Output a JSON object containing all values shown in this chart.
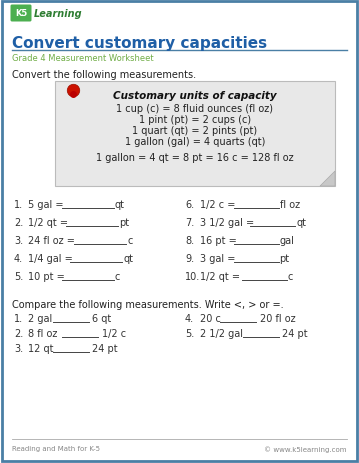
{
  "title": "Convert customary capacities",
  "subtitle": "Grade 4 Measurement Worksheet",
  "bg_color": "#ffffff",
  "border_color": "#4a7fa5",
  "title_color": "#1f5fa6",
  "subtitle_color": "#70ad47",
  "intro_text": "Convert the following measurements.",
  "note_title": "Customary units of capacity",
  "note_lines": [
    "1 cup (c) = 8 fluid ounces (fl oz)",
    "1 pint (pt) = 2 cups (c)",
    "1 quart (qt) = 2 pints (pt)",
    "1 gallon (gal) = 4 quarts (qt)",
    "",
    "1 gallon = 4 qt = 8 pt = 16 c = 128 fl oz"
  ],
  "convert_q_left_num": [
    "1.",
    "2.",
    "3.",
    "4.",
    "5."
  ],
  "convert_q_left_text": [
    "5 gal = ",
    "1/2 qt = ",
    "24 fl oz = ",
    "1/4 gal = ",
    "10 pt = "
  ],
  "convert_q_left_unit": [
    "qt",
    "pt",
    "c",
    "qt",
    "c"
  ],
  "convert_q_right_num": [
    "6.",
    "7.",
    "8.",
    "9.",
    "10."
  ],
  "convert_q_right_text": [
    "1/2 c = ",
    "3 1/2 gal = ",
    "16 pt = ",
    "3 gal = ",
    "1/2 qt =  "
  ],
  "convert_q_right_unit": [
    "fl oz",
    "qt",
    "gal",
    "pt",
    "c"
  ],
  "compare_intro": "Compare the following measurements. Write <, > or =.",
  "compare_left_num": [
    "1.",
    "2.",
    "3."
  ],
  "compare_left_a": [
    "2 gal",
    "8 fl oz",
    "12 qt"
  ],
  "compare_left_b": [
    "6 qt",
    "1/2 c",
    "24 pt"
  ],
  "compare_right_num": [
    "4.",
    "5."
  ],
  "compare_right_a": [
    "20 c",
    "2 1/2 gal"
  ],
  "compare_right_b": [
    "20 fl oz",
    "24 pt"
  ],
  "footer_left": "Reading and Math for K-5",
  "footer_right": "© www.k5learning.com",
  "line_color": "#cccccc",
  "line_color2": "#777777"
}
